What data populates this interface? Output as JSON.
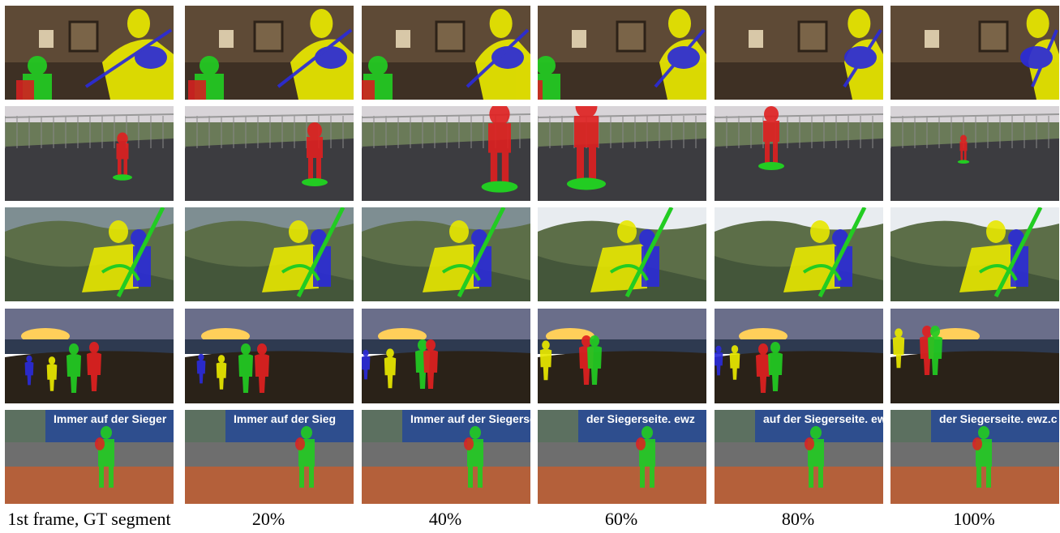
{
  "captions": [
    "1st frame, GT segment",
    "20%",
    "40%",
    "60%",
    "80%",
    "100%"
  ],
  "rows": [
    {
      "scene": "violin-player",
      "objects": [
        "yellow",
        "blue",
        "green",
        "red"
      ]
    },
    {
      "scene": "hoverboard-rider",
      "objects": [
        "red",
        "green"
      ]
    },
    {
      "scene": "paragliders",
      "objects": [
        "yellow",
        "blue",
        "green"
      ]
    },
    {
      "scene": "sunset-hikers",
      "objects": [
        "blue",
        "yellow",
        "green",
        "red"
      ]
    },
    {
      "scene": "tennis-player",
      "objects": [
        "green",
        "red"
      ]
    }
  ],
  "banner_text": [
    "Immer auf der Sieger",
    "Immer auf der Sieg",
    "Immer auf der Siegerseite.",
    "der Siegerseite. ewz",
    "auf der Siegerseite. ewz",
    "der Siegerseite. ewz.c"
  ],
  "colors": {
    "yellow": "#e8e800",
    "blue": "#2b2bd8",
    "green": "#22cc22",
    "red": "#e02020"
  }
}
